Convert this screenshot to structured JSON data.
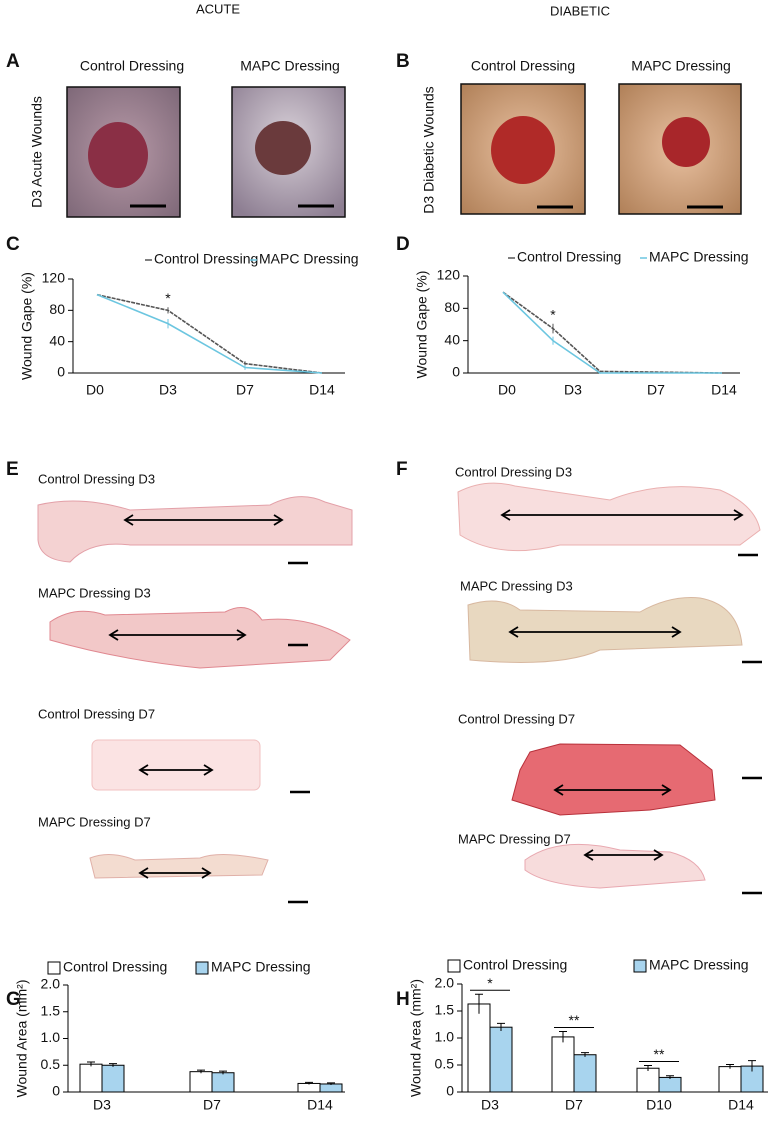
{
  "columns": [
    "ACUTE",
    "DIABETIC"
  ],
  "panel_labels": [
    "A",
    "B",
    "C",
    "D",
    "E",
    "F",
    "G",
    "H"
  ],
  "photos": [
    {
      "side_label": "D3 Acute Wounds",
      "titles": [
        "Control Dressing",
        "MAPC Dressing"
      ]
    },
    {
      "side_label": "D3 Diabetic Wounds",
      "titles": [
        "Control Dressing",
        "MAPC Dressing"
      ]
    }
  ],
  "histology": [
    [
      "Control Dressing D3",
      "MAPC Dressing D3",
      "Control Dressing D7",
      "MAPC Dressing D7"
    ],
    [
      "Control Dressing D3",
      "MAPC Dressing D3",
      "Control Dressing D7",
      "MAPC Dressing D7"
    ]
  ],
  "chart_data": [
    {
      "type": "line",
      "ylabel": "Wound Gape (%)",
      "categories": [
        "D0",
        "D3",
        "D7",
        "D14"
      ],
      "series": [
        {
          "name": "Control Dressing",
          "color": "#555555",
          "values": [
            100,
            80,
            12,
            0
          ],
          "errors": [
            0,
            4,
            3,
            0
          ]
        },
        {
          "name": "MAPC Dressing",
          "color": "#6cc6e0",
          "values": [
            100,
            63,
            7,
            0
          ],
          "errors": [
            0,
            6,
            3,
            0
          ]
        }
      ],
      "ylim": [
        0,
        120
      ],
      "yticks": [
        0,
        40,
        80,
        120
      ],
      "annotations": [
        "*"
      ]
    },
    {
      "type": "line",
      "ylabel": "Wound Gape (%)",
      "categories": [
        "D0",
        "D3",
        "D7",
        "D14"
      ],
      "series": [
        {
          "name": "Control Dressing",
          "color": "#555555",
          "values": [
            100,
            55,
            2,
            0
          ],
          "errors": [
            0,
            6,
            1,
            0
          ]
        },
        {
          "name": "MAPC Dressing",
          "color": "#6cc6e0",
          "values": [
            100,
            40,
            0,
            0
          ],
          "errors": [
            0,
            5,
            1,
            0
          ]
        }
      ],
      "ylim": [
        0,
        120
      ],
      "yticks": [
        0,
        40,
        80,
        120
      ],
      "annotations": [
        "*"
      ]
    },
    {
      "type": "bar",
      "ylabel": "Wound Area (mm²)",
      "categories": [
        "D3",
        "D7",
        "D14"
      ],
      "series": [
        {
          "name": "Control Dressing",
          "color": "#ffffff",
          "values": [
            0.52,
            0.38,
            0.16
          ],
          "errors": [
            0.04,
            0.03,
            0.02
          ]
        },
        {
          "name": "MAPC Dressing",
          "color": "#a8d4ee",
          "values": [
            0.5,
            0.36,
            0.15
          ],
          "errors": [
            0.03,
            0.03,
            0.02
          ]
        }
      ],
      "ylim": [
        0,
        2
      ],
      "yticks": [
        0,
        0.5,
        {
          "value": 1,
          "label": "1.0"
        },
        1.5,
        {
          "value": 2,
          "label": "2.0"
        }
      ],
      "annotations": []
    },
    {
      "type": "bar",
      "ylabel": "Wound Area (mm²)",
      "categories": [
        "D3",
        "D7",
        "D10",
        "D14"
      ],
      "series": [
        {
          "name": "Control Dressing",
          "color": "#ffffff",
          "values": [
            1.63,
            1.02,
            0.44,
            0.47
          ],
          "errors": [
            0.18,
            0.1,
            0.05,
            0.04
          ]
        },
        {
          "name": "MAPC Dressing",
          "color": "#a8d4ee",
          "values": [
            1.2,
            0.69,
            0.27,
            0.48
          ],
          "errors": [
            0.07,
            0.04,
            0.03,
            0.1
          ]
        }
      ],
      "ylim": [
        0,
        2
      ],
      "yticks": [
        0,
        0.5,
        {
          "value": 1,
          "label": "1.0"
        },
        1.5,
        {
          "value": 2,
          "label": "2.0"
        }
      ],
      "annotations": [
        "*",
        "**",
        "**"
      ]
    }
  ]
}
